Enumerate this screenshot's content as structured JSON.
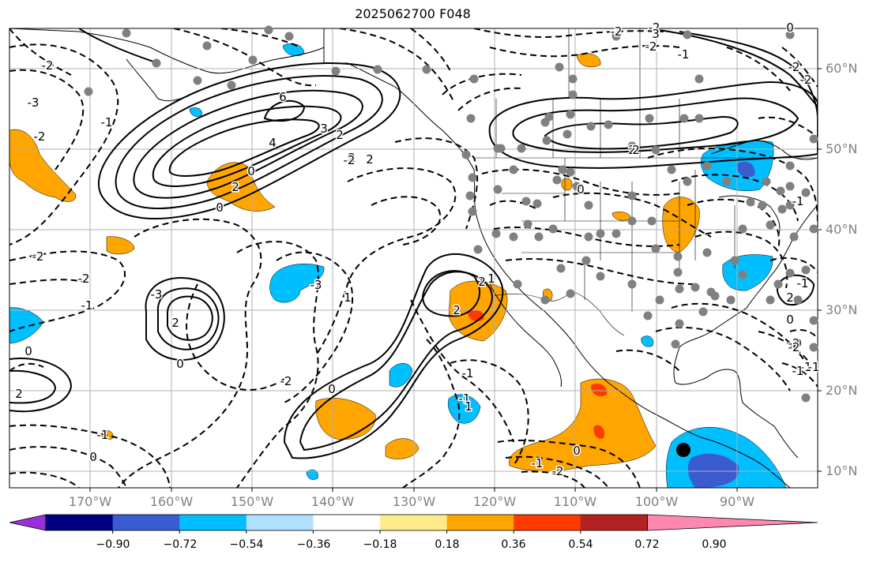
{
  "title": "2025062700 F048",
  "lat_labels": [
    "60°N",
    "50°N",
    "40°N",
    "30°N",
    "20°N",
    "10°N"
  ],
  "lon_labels": [
    "170°W",
    "160°W",
    "150°W",
    "140°W",
    "130°W",
    "120°W",
    "110°W",
    "100°W",
    "90°W"
  ],
  "colorbar": {
    "ticks": [
      "−0.90",
      "−0.72",
      "−0.54",
      "−0.36",
      "−0.18",
      "0.18",
      "0.36",
      "0.54",
      "0.72",
      "0.90"
    ],
    "colors": [
      "#9b30d9",
      "#000080",
      "#3b5bd1",
      "#00bfff",
      "#b0e0ff",
      "#ffffff",
      "#ffeb8a",
      "#ffa500",
      "#ff3a00",
      "#b22222",
      "#ff88b0"
    ]
  },
  "contour_labels": [
    "6",
    "4",
    "3",
    "2",
    "2",
    "2",
    "2",
    "1",
    "0",
    "0",
    "-2",
    "-1",
    "-2",
    "-3",
    "-2",
    "2",
    "2",
    "-1",
    "-3",
    "2",
    "-1",
    "0",
    "-1",
    "-2",
    "0",
    "0",
    "-2",
    "-2",
    "2",
    "-1",
    "1",
    "-2",
    "0",
    "-2",
    "-2",
    "-2",
    "-1",
    "-3",
    "-2",
    "2",
    "3",
    "0",
    "-2",
    "-1",
    "0",
    "0",
    "0",
    "2",
    "-1",
    "-1",
    "-2",
    "-2",
    "-1",
    "-1",
    "0",
    "2",
    "1",
    "-1"
  ],
  "marker_colors": {
    "station": "#808080",
    "storm": "#000000"
  }
}
